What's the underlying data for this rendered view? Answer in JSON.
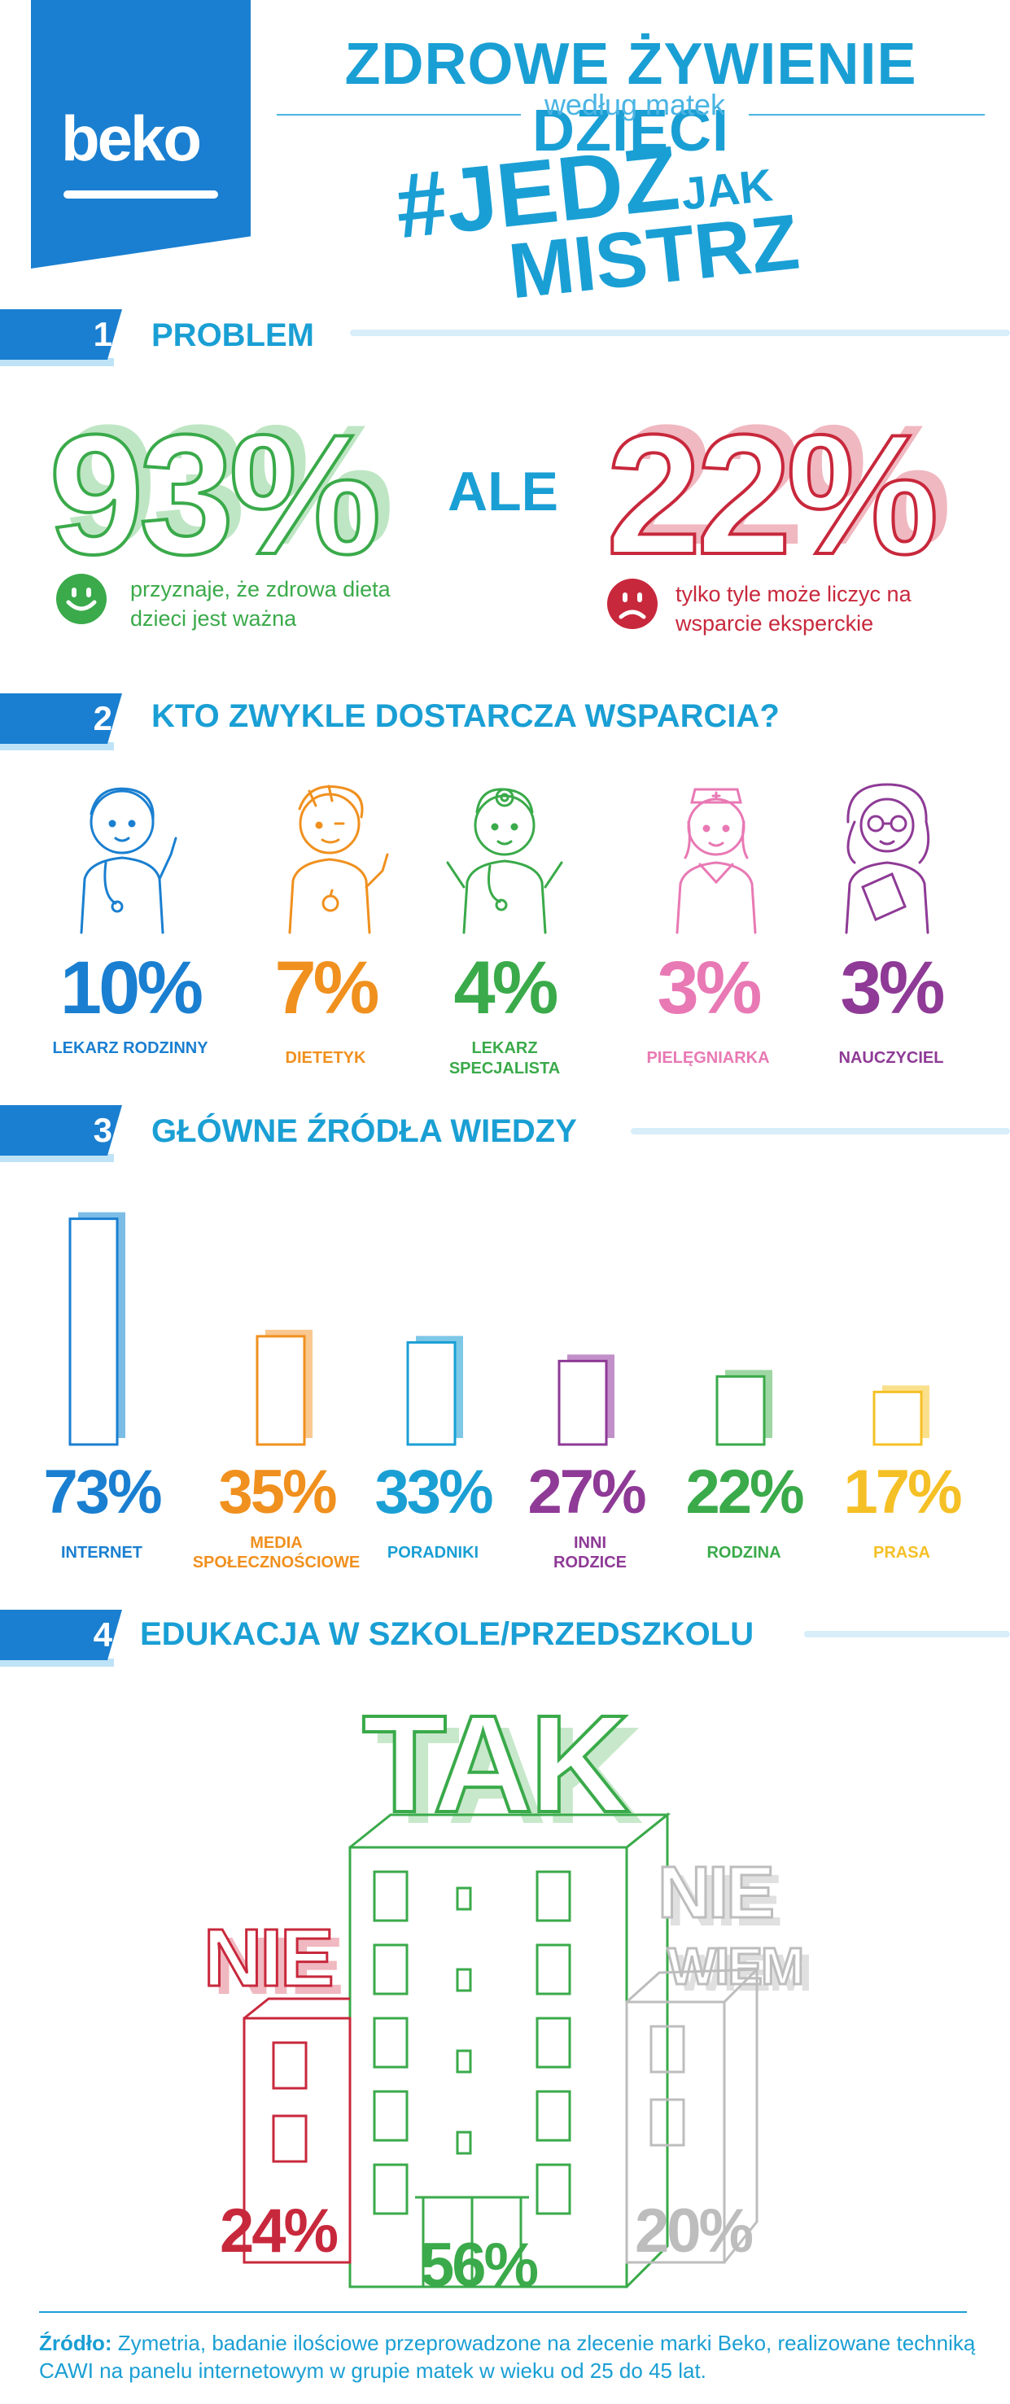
{
  "header": {
    "brand": "beko",
    "title": "ZDROWE ŻYWIENIE DZIECI",
    "subtitle": "według matek",
    "hashtag_main": "#JEDZ",
    "hashtag_small": "JAK",
    "hashtag_second": "MISTRZ"
  },
  "sections": {
    "s1": {
      "number": "1",
      "title": "PROBLEM"
    },
    "s2": {
      "number": "2",
      "title": "KTO ZWYKLE DOSTARCZA WSPARCIA?"
    },
    "s3": {
      "number": "3",
      "title": "GŁÓWNE ŹRÓDŁA WIEDZY"
    },
    "s4": {
      "number": "4",
      "title": "EDUKACJA W SZKOLE/PRZEDSZKOLU"
    }
  },
  "problem": {
    "left_value": "93%",
    "left_text": "przyznaje, że zdrowa dieta dzieci jest ważna",
    "connector": "ALE",
    "right_value": "22%",
    "right_text": "tylko tyle może liczyc na wsparcie eksperckie",
    "left_color": "#3aaa4a",
    "right_color": "#c8283c"
  },
  "support": [
    {
      "value": "10%",
      "label": "LEKARZ RODZINNY",
      "color": "#1a7fd0",
      "icon": "family-doctor-icon"
    },
    {
      "value": "7%",
      "label": "DIETETYK",
      "color": "#f0901e",
      "icon": "dietitian-icon"
    },
    {
      "value": "4%",
      "label": "LEKARZ SPECJALISTA",
      "color": "#3aaa4a",
      "icon": "specialist-icon"
    },
    {
      "value": "3%",
      "label": "PIELĘGNIARKA",
      "color": "#e879b4",
      "icon": "nurse-icon"
    },
    {
      "value": "3%",
      "label": "NAUCZYCIEL",
      "color": "#8e3a96",
      "icon": "teacher-icon"
    }
  ],
  "chart_data": {
    "type": "bar",
    "categories": [
      "INTERNET",
      "MEDIA SPOŁECZNOŚCIOWE",
      "PORADNIKI",
      "INNI RODZICE",
      "RODZINA",
      "PRASA"
    ],
    "values": [
      73,
      35,
      33,
      27,
      22,
      17
    ],
    "value_labels": [
      "73%",
      "35%",
      "33%",
      "27%",
      "22%",
      "17%"
    ],
    "colors": [
      "#1a7fd0",
      "#f0901e",
      "#1a9fd4",
      "#8e3a96",
      "#3aaa4a",
      "#f5c026"
    ],
    "shadow_colors": [
      "#7cbde6",
      "#f9c890",
      "#7cc8e6",
      "#c290c8",
      "#9ed6a4",
      "#fbe08c"
    ]
  },
  "education": {
    "yes_label": "TAK",
    "yes_value": "56%",
    "no_label": "NIE",
    "no_value": "24%",
    "dontknow_label_1": "NIE",
    "dontknow_label_2": "WIEM",
    "dontknow_value": "20%",
    "yes_color": "#3aaa4a",
    "no_color": "#c8283c",
    "dontknow_color": "#bdbdbd"
  },
  "footer": {
    "source_label": "Źródło:",
    "source_text": "Zymetria, badanie ilościowe przeprowadzone na zlecenie marki Beko, realizowane techniką CAWI na panelu internetowym w grupie matek w wieku od 25 do 45 lat."
  }
}
